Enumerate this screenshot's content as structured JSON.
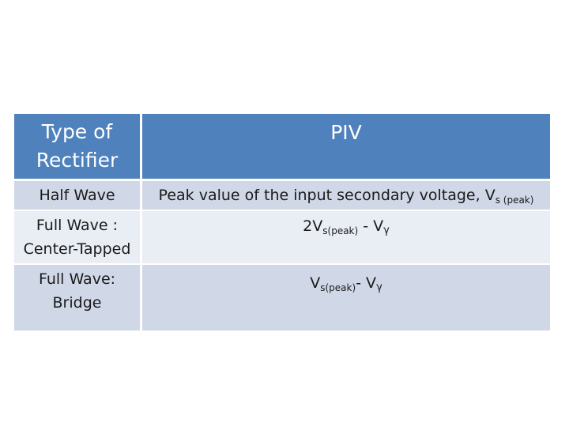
{
  "table": {
    "header": {
      "col1_line1": "Type of",
      "col1_line2": "Rectifier",
      "col2": "PIV"
    },
    "rows": [
      {
        "type_line1": "Half Wave",
        "type_line2": "",
        "piv_main": "Peak value of the input secondary voltage, V",
        "piv_sub": "s (peak)"
      },
      {
        "type_line1": "Full Wave :",
        "type_line2": "Center-Tapped",
        "piv_prefix": "2V",
        "piv_sub": "s(peak)",
        "piv_mid": " - V",
        "piv_sub2": "γ"
      },
      {
        "type_line1": "Full Wave:",
        "type_line2": "Bridge",
        "piv_prefix": "V",
        "piv_sub": "s(peak)",
        "piv_mid": "- V",
        "piv_sub2": "γ"
      }
    ]
  },
  "colors": {
    "header_bg": "#4f81bd",
    "row_dark": "#d0d8e8",
    "row_light": "#e9edf4"
  }
}
